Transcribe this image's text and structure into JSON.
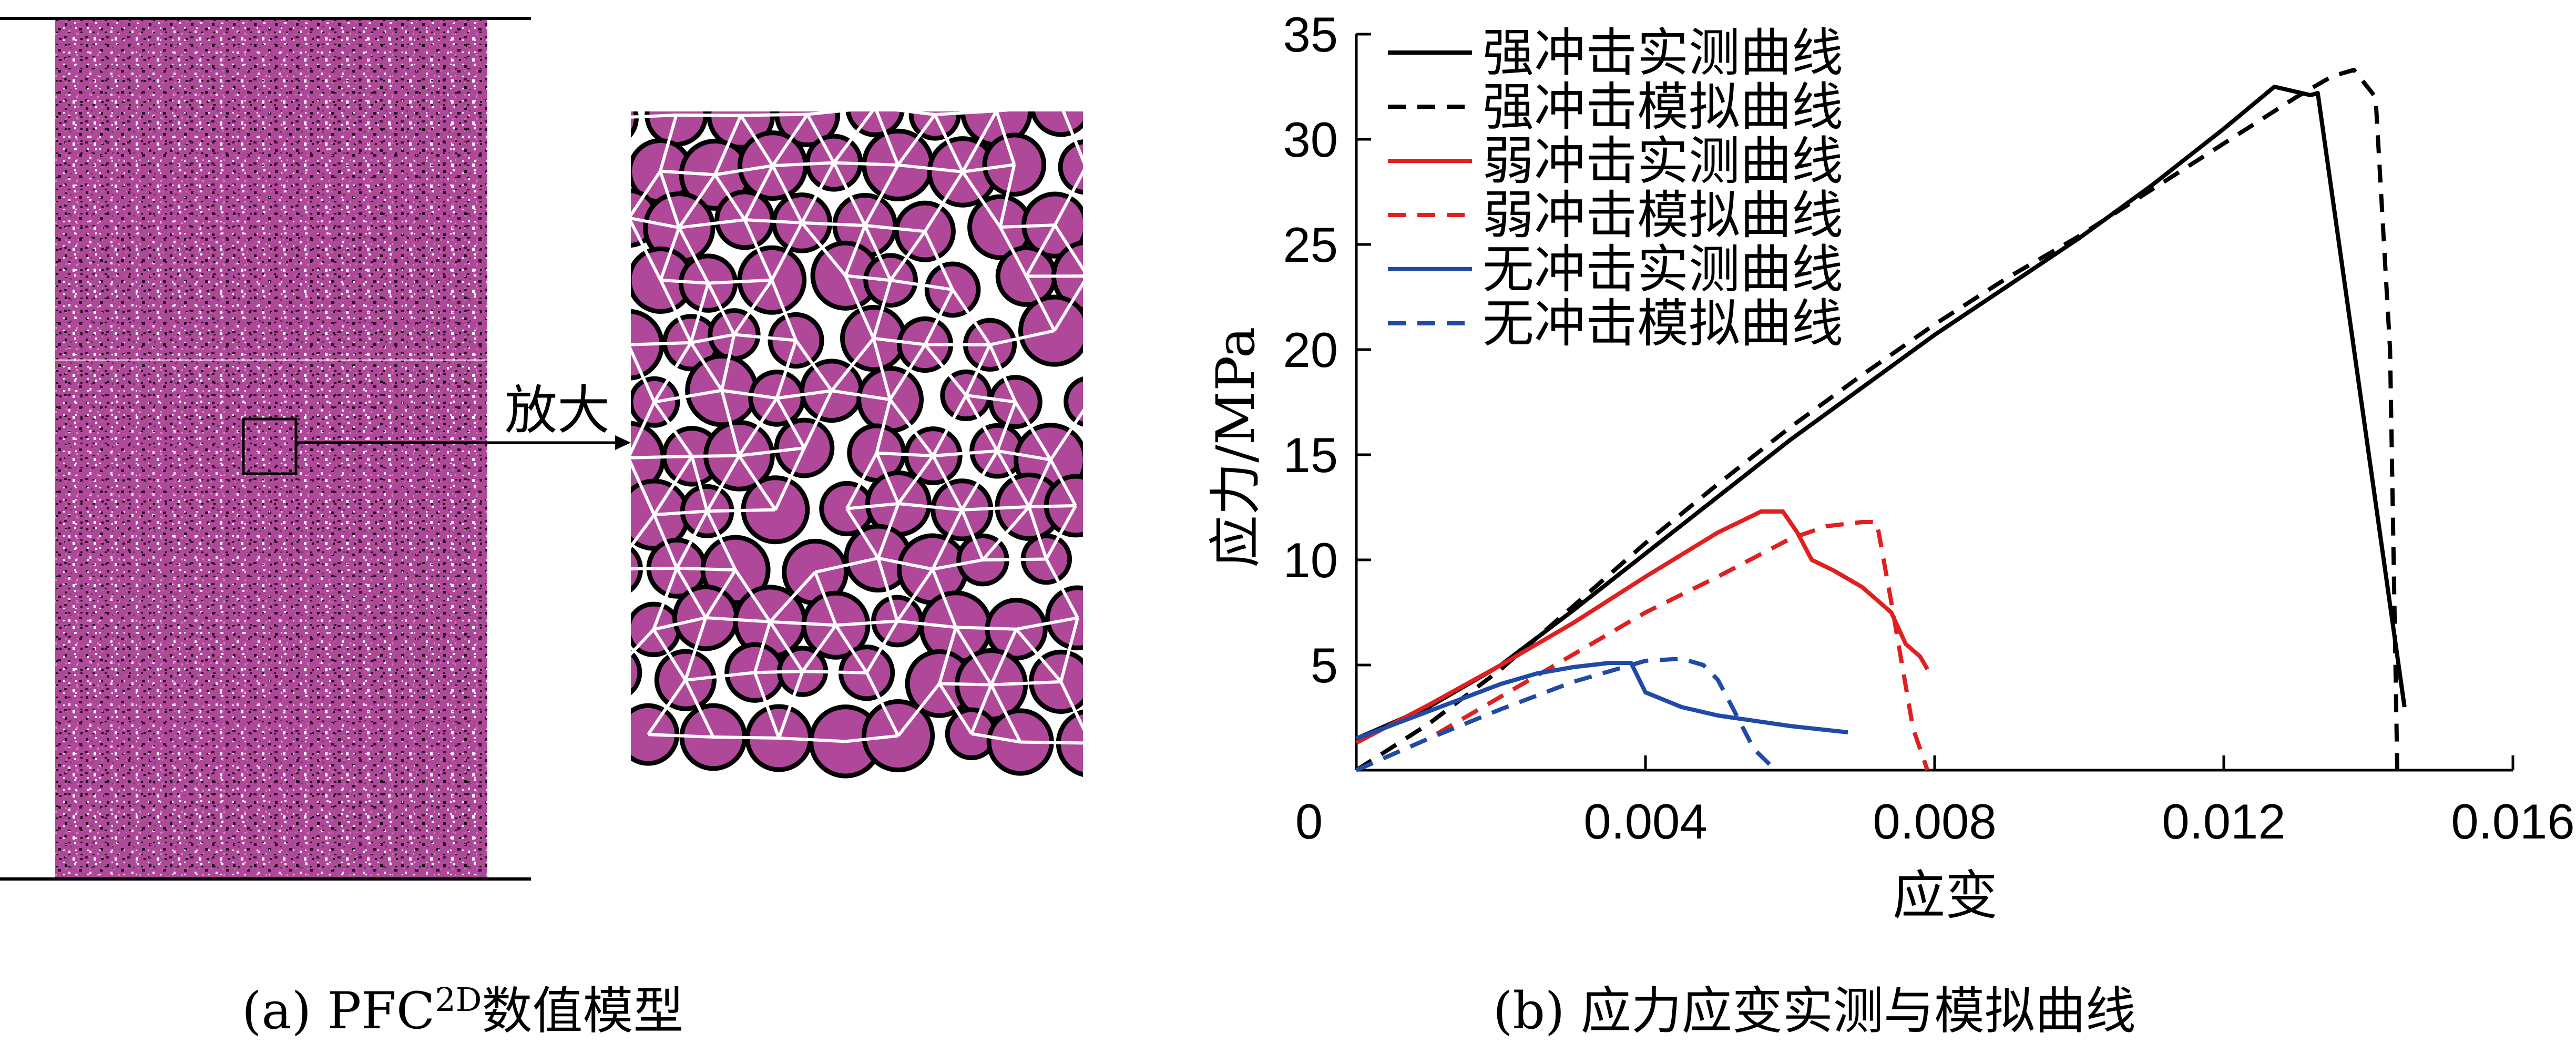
{
  "panel_a": {
    "zoom_label": "放大",
    "caption_prefix": "(a)  PFC",
    "caption_sup": "2D",
    "caption_suffix": "数值模型",
    "particle_color": "#b0489a",
    "contact_color": "#ffffff"
  },
  "panel_b": {
    "caption": "(b)  应力应变实测与模拟曲线"
  },
  "chart_data": {
    "type": "line",
    "title": "",
    "xlabel": "应变",
    "ylabel": "应力/MPa",
    "xlim": [
      0,
      0.016
    ],
    "ylim": [
      0,
      35
    ],
    "xticks": [
      0,
      0.004,
      0.008,
      0.012,
      0.016
    ],
    "xtick_labels": [
      "0",
      "0.004",
      "0.008",
      "0.012",
      "0.016"
    ],
    "yticks": [
      5,
      10,
      15,
      20,
      25,
      30,
      35
    ],
    "ytick_labels": [
      "5",
      "10",
      "15",
      "20",
      "25",
      "30",
      "35"
    ],
    "legend_position": "top-left",
    "grid": false,
    "series": [
      {
        "name": "强冲击实测曲线",
        "color": "#000000",
        "dash": "solid",
        "x": [
          0,
          0.001,
          0.002,
          0.003,
          0.004,
          0.005,
          0.006,
          0.007,
          0.008,
          0.009,
          0.01,
          0.011,
          0.012,
          0.0127,
          0.0132,
          0.0133,
          0.0145
        ],
        "y": [
          1.5,
          3.0,
          5.0,
          7.6,
          10.3,
          13.0,
          15.7,
          18.2,
          20.7,
          23.0,
          25.3,
          27.8,
          30.5,
          32.5,
          32.1,
          32.2,
          3.0
        ]
      },
      {
        "name": "强冲击模拟曲线",
        "color": "#000000",
        "dash": "dashed",
        "x": [
          0,
          0.001,
          0.002,
          0.003,
          0.004,
          0.005,
          0.006,
          0.007,
          0.008,
          0.009,
          0.01,
          0.011,
          0.012,
          0.013,
          0.0135,
          0.0138,
          0.0141,
          0.0143,
          0.0144
        ],
        "y": [
          0,
          2.2,
          4.8,
          7.8,
          10.8,
          13.6,
          16.3,
          18.8,
          21.2,
          23.4,
          25.4,
          27.6,
          29.8,
          32.0,
          33.0,
          33.3,
          32.0,
          20.0,
          0
        ]
      },
      {
        "name": "弱冲击实测曲线",
        "color": "#e02020",
        "dash": "solid",
        "x": [
          0,
          0.001,
          0.002,
          0.003,
          0.004,
          0.005,
          0.0056,
          0.0059,
          0.0061,
          0.0063,
          0.0066,
          0.007,
          0.0074,
          0.0076,
          0.0078,
          0.0079
        ],
        "y": [
          1.3,
          3.1,
          5.0,
          7.0,
          9.2,
          11.3,
          12.3,
          12.3,
          11.3,
          10.0,
          9.5,
          8.7,
          7.5,
          6.0,
          5.4,
          4.8
        ]
      },
      {
        "name": "弱冲击模拟曲线",
        "color": "#e02020",
        "dash": "dashed",
        "x": [
          0,
          0.001,
          0.002,
          0.003,
          0.004,
          0.005,
          0.006,
          0.0065,
          0.007,
          0.0072,
          0.0074,
          0.0077,
          0.0079
        ],
        "y": [
          0,
          1.5,
          3.5,
          5.5,
          7.5,
          9.2,
          11.0,
          11.6,
          11.8,
          11.8,
          8.0,
          2.0,
          0
        ]
      },
      {
        "name": "无冲击实测曲线",
        "color": "#1f4aa8",
        "dash": "solid",
        "x": [
          0,
          0.001,
          0.002,
          0.0025,
          0.003,
          0.0035,
          0.0038,
          0.004,
          0.0045,
          0.005,
          0.006,
          0.0068
        ],
        "y": [
          1.5,
          2.8,
          4.1,
          4.6,
          4.9,
          5.1,
          5.1,
          3.7,
          3.0,
          2.6,
          2.1,
          1.8
        ]
      },
      {
        "name": "无冲击模拟曲线",
        "color": "#1f4aa8",
        "dash": "dashed",
        "x": [
          0,
          0.001,
          0.002,
          0.003,
          0.004,
          0.0045,
          0.0048,
          0.005,
          0.0052,
          0.0055,
          0.0058
        ],
        "y": [
          0,
          1.5,
          2.9,
          4.2,
          5.2,
          5.3,
          5.0,
          4.3,
          3.0,
          1.0,
          0
        ]
      }
    ]
  }
}
